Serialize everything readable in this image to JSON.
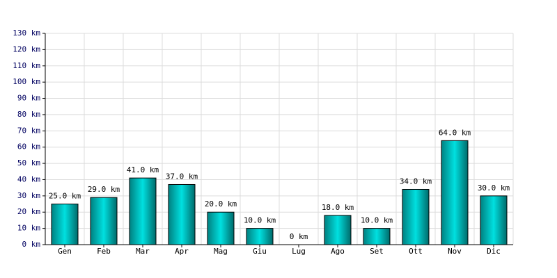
{
  "chart_data": {
    "type": "bar",
    "categories": [
      "Gen",
      "Feb",
      "Mar",
      "Apr",
      "Mag",
      "Giu",
      "Lug",
      "Ago",
      "Set",
      "Ott",
      "Nov",
      "Dic"
    ],
    "values": [
      25,
      29,
      41,
      37,
      20,
      10,
      0,
      18,
      10,
      34,
      64,
      30
    ],
    "value_labels": [
      "25.0 km",
      "29.0 km",
      "41.0 km",
      "37.0 km",
      "20.0 km",
      "10.0 km",
      "0 km",
      "18.0 km",
      "10.0 km",
      "34.0 km",
      "64.0 km",
      "30.0 km"
    ],
    "color": "#00e0e0",
    "ylim": [
      0,
      130
    ],
    "yticks": [
      {
        "value": 0,
        "label": "0 km"
      },
      {
        "value": 10,
        "label": "10 km"
      },
      {
        "value": 20,
        "label": "20 km"
      },
      {
        "value": 30,
        "label": "30 km"
      },
      {
        "value": 40,
        "label": "40 km"
      },
      {
        "value": 50,
        "label": "50 km"
      },
      {
        "value": 60,
        "label": "60 km"
      },
      {
        "value": 70,
        "label": "70 km"
      },
      {
        "value": 80,
        "label": "80 km"
      },
      {
        "value": 90,
        "label": "90 km"
      },
      {
        "value": 100,
        "label": "100 km"
      },
      {
        "value": 110,
        "label": "110 km"
      },
      {
        "value": 120,
        "label": "120 km"
      },
      {
        "value": 130,
        "label": "130 km"
      }
    ],
    "grid": true
  }
}
